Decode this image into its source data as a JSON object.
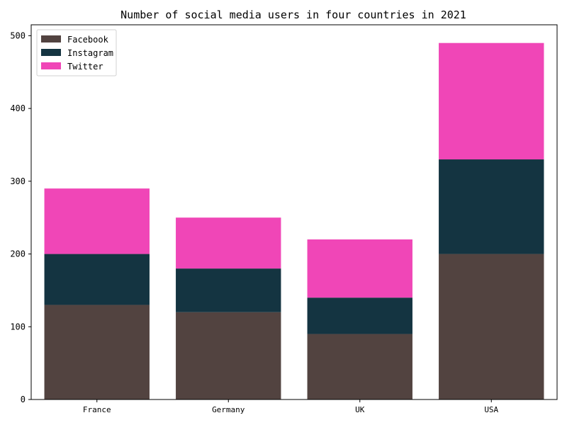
{
  "chart_data": {
    "type": "bar",
    "stacked": true,
    "title": "Number of social media users in four countries in 2021",
    "xlabel": "",
    "ylabel": "",
    "categories": [
      "France",
      "Germany",
      "UK",
      "USA"
    ],
    "series": [
      {
        "name": "Facebook",
        "color": "#524340",
        "values": [
          130,
          120,
          90,
          200
        ]
      },
      {
        "name": "Instagram",
        "color": "#143441",
        "values": [
          70,
          60,
          50,
          130
        ]
      },
      {
        "name": "Twitter",
        "color": "#f046b7",
        "values": [
          90,
          70,
          80,
          160
        ]
      }
    ],
    "ylim": [
      0,
      515
    ],
    "yticks": [
      0,
      100,
      200,
      300,
      400,
      500
    ],
    "grid": false,
    "legend": "top-left"
  }
}
